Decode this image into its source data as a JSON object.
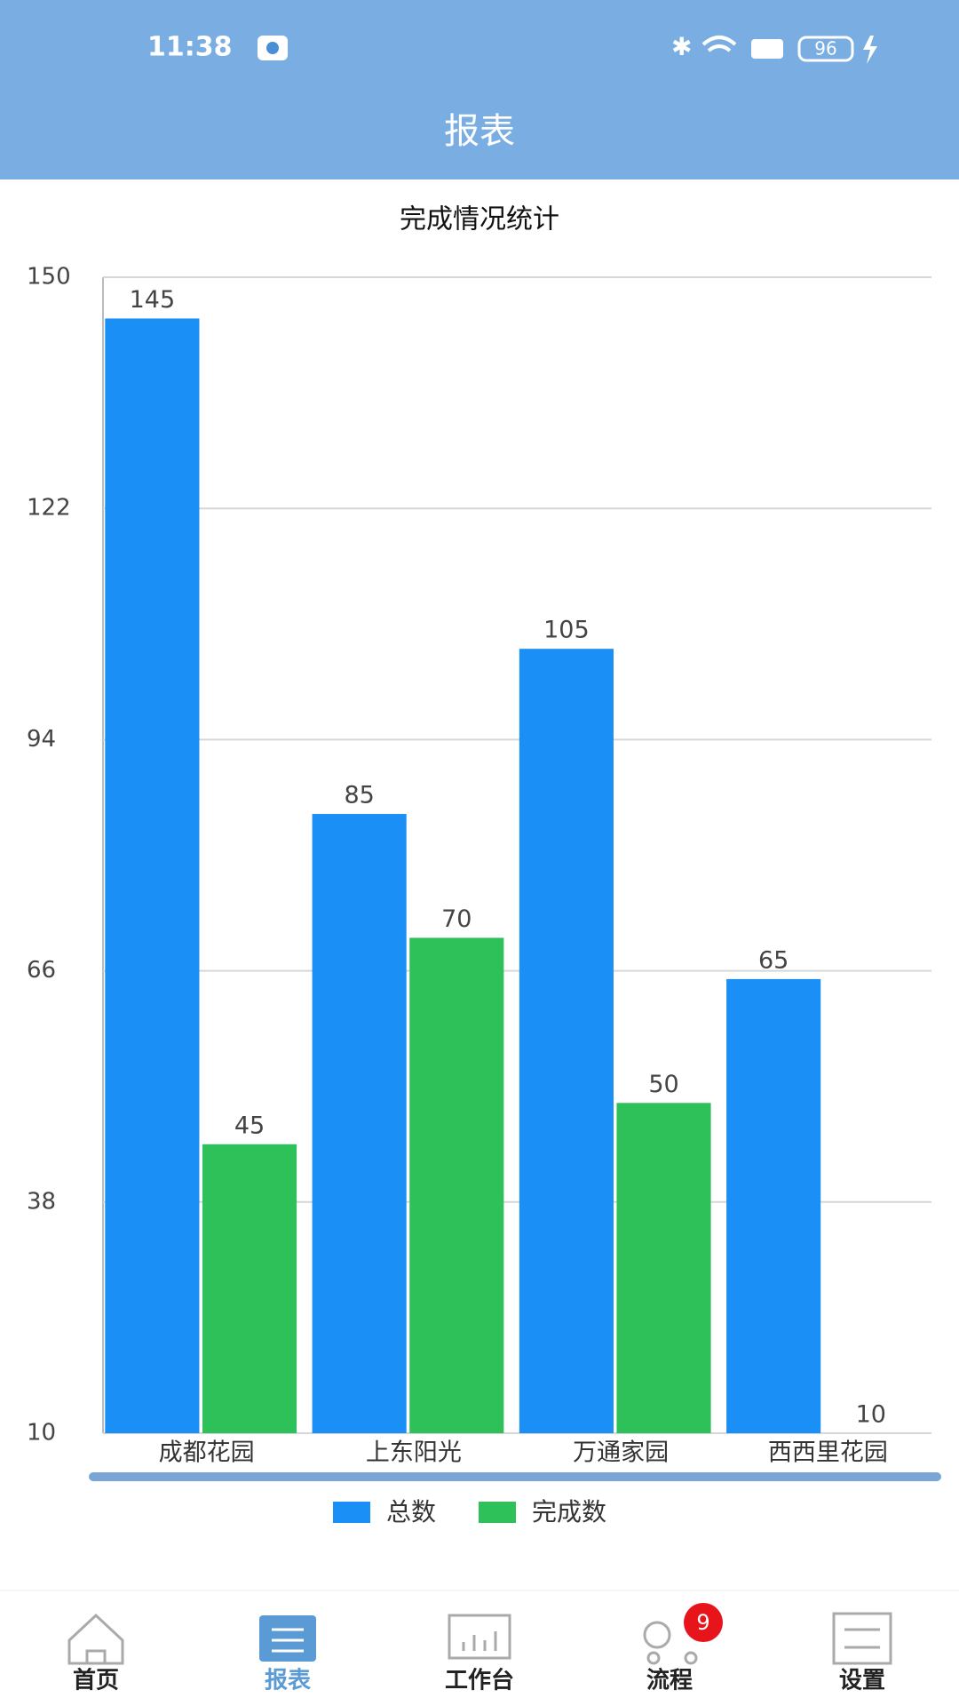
{
  "status_bar": {
    "time": "11:38",
    "battery": "96"
  },
  "header": {
    "title": "报表"
  },
  "chart_data": {
    "type": "bar",
    "title": "完成情况统计",
    "categories": [
      "成都花园",
      "上东阳光",
      "万通家园",
      "西西里花园"
    ],
    "series": [
      {
        "name": "总数",
        "color": "#1a8ff5",
        "values": [
          145,
          85,
          105,
          65
        ]
      },
      {
        "name": "完成数",
        "color": "#2ec15a",
        "values": [
          45,
          70,
          50,
          10
        ]
      }
    ],
    "ylim": [
      10,
      150
    ],
    "yticks": [
      10,
      38,
      66,
      94,
      122,
      150
    ],
    "grid": true,
    "legend": "bottom"
  },
  "tabs": [
    {
      "label": "首页"
    },
    {
      "label": "报表",
      "active": true
    },
    {
      "label": "工作台"
    },
    {
      "label": "流程",
      "badge": "9"
    },
    {
      "label": "设置"
    }
  ]
}
